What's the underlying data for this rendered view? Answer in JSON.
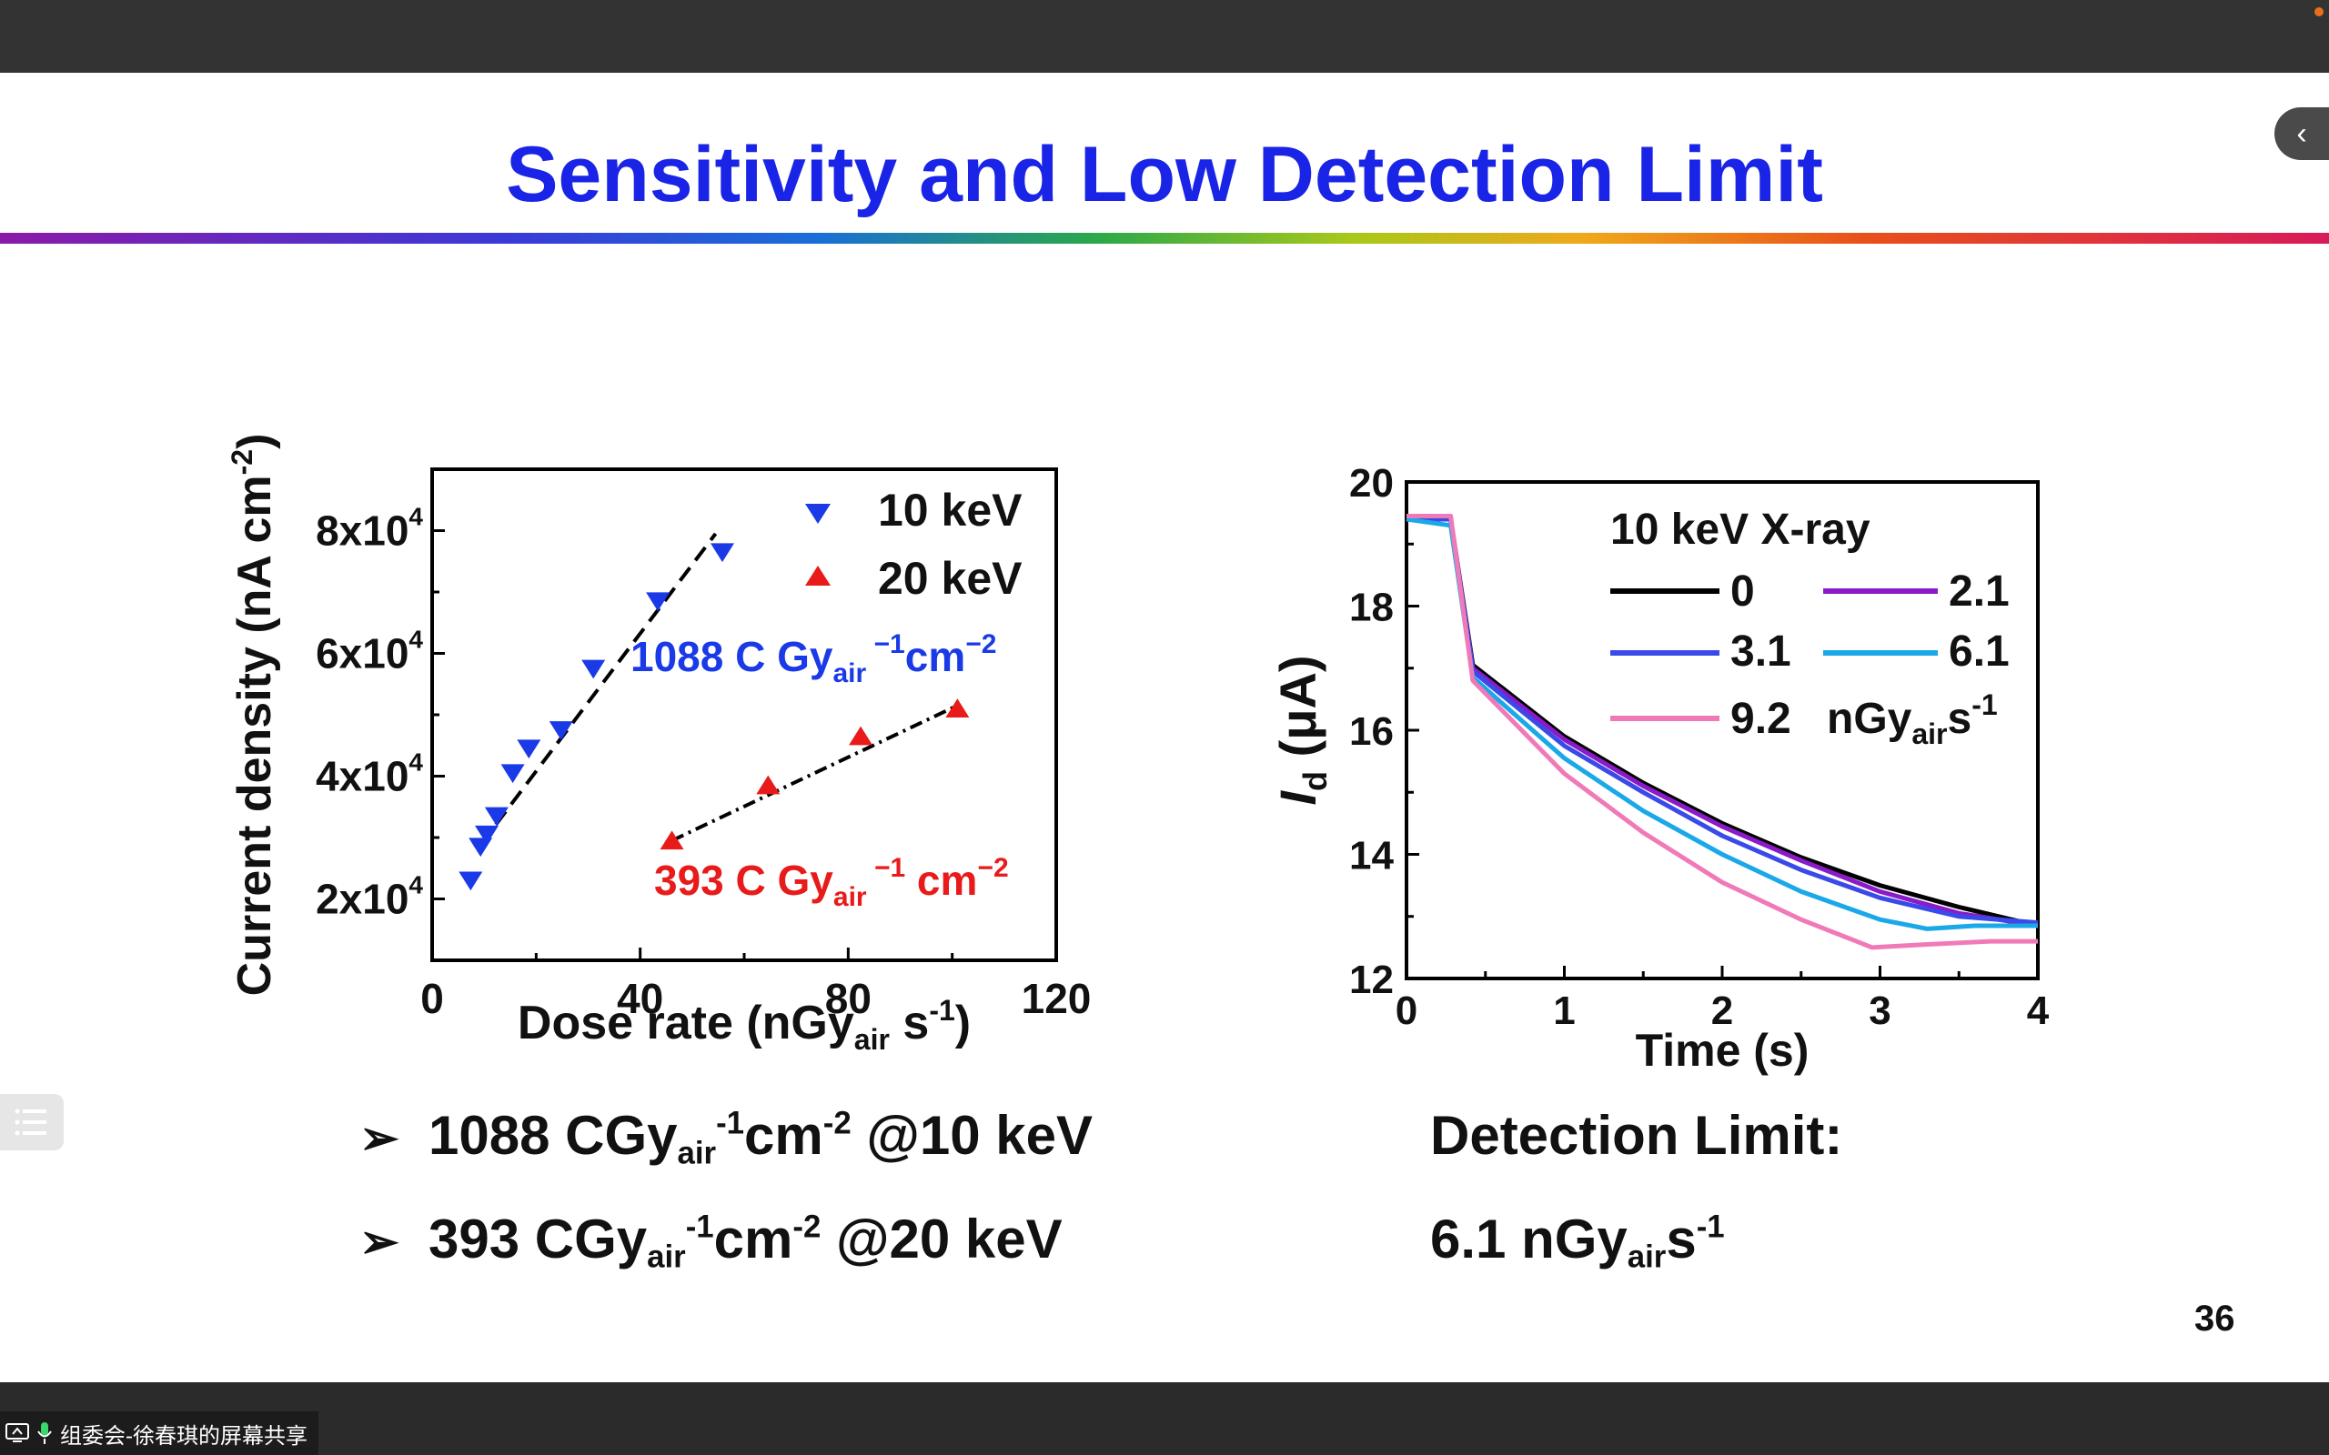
{
  "slide": {
    "title": "Sensitivity and Low Detection Limit",
    "page_number": "36",
    "bullets": [
      {
        "value": "1088",
        "unit": "CGy",
        "sub": "air",
        "exp1": "-1",
        "mid": "cm",
        "exp2": "-2",
        "tail": "@10 keV"
      },
      {
        "value": "393",
        "unit": "CGy",
        "sub": "air",
        "exp1": "-1",
        "mid": "cm",
        "exp2": "-2",
        "tail": "@20 keV"
      }
    ],
    "detection_limit": {
      "label": "Detection Limit:",
      "value": "6.1 nGy",
      "sub": "air",
      "mid": "s",
      "exp": "-1"
    }
  },
  "screen_share": {
    "label": "组委会-徐春琪的屏幕共享"
  },
  "colors": {
    "title": "#1a24e6",
    "blue_series": "#1a3ae8",
    "red_series": "#e81a1a"
  },
  "chart_data": [
    {
      "type": "scatter",
      "xlabel": "Dose rate (nGyair s-1)",
      "ylabel": "Current density (nA cm-2)",
      "xlim": [
        0,
        120
      ],
      "ylim": [
        10000,
        90000
      ],
      "xticks": [
        "0",
        "40",
        "80",
        "120"
      ],
      "yticks": [
        "2x104",
        "4x104",
        "6x104",
        "8x104"
      ],
      "series": [
        {
          "name": "10 keV",
          "color": "#1a3ae8",
          "marker": "triangle-down",
          "x": [
            7.4,
            9.3,
            10.5,
            12.4,
            15.5,
            18.6,
            24.8,
            31.0,
            43.4,
            55.8
          ],
          "y": [
            23000,
            28500,
            30500,
            33500,
            40500,
            44500,
            47500,
            57500,
            68500,
            76500
          ],
          "fit": [
            [
              9.3,
              28800
            ],
            [
              54.5,
              79500
            ]
          ],
          "fit_style": "dashed",
          "annotation": "1088 C Gyair−1cm−2"
        },
        {
          "name": "20 keV",
          "color": "#e81a1a",
          "marker": "triangle-up",
          "x": [
            46.1,
            64.6,
            82.4,
            101.0
          ],
          "y": [
            29500,
            38500,
            46500,
            51000
          ],
          "fit": [
            [
              46.1,
              29500
            ],
            [
              101.0,
              51500
            ]
          ],
          "fit_style": "dashdot",
          "annotation": "393 C Gyair−1 cm−2"
        }
      ],
      "legend_position": "top-right"
    },
    {
      "type": "line",
      "xlabel": "Time (s)",
      "ylabel": "Id (μA)",
      "xlim": [
        0,
        4
      ],
      "ylim": [
        12,
        20
      ],
      "xticks": [
        "0",
        "1",
        "2",
        "3",
        "4"
      ],
      "yticks": [
        "12",
        "14",
        "16",
        "18",
        "20"
      ],
      "legend_title": "10 keV  X-ray",
      "legend_unit": "nGyairs-1",
      "series": [
        {
          "name": "0",
          "color": "#000000",
          "x": [
            0,
            0.28,
            0.42,
            1.0,
            1.5,
            2.0,
            2.5,
            3.0,
            3.5,
            4.0
          ],
          "y": [
            19.4,
            19.4,
            17.05,
            15.9,
            15.15,
            14.5,
            13.95,
            13.5,
            13.15,
            12.85
          ]
        },
        {
          "name": "2.1",
          "color": "#8b1ac8",
          "x": [
            0,
            0.28,
            0.42,
            1.0,
            1.5,
            2.0,
            2.5,
            3.0,
            3.5,
            4.0
          ],
          "y": [
            19.4,
            19.4,
            17.0,
            15.85,
            15.1,
            14.45,
            13.9,
            13.4,
            13.05,
            12.85
          ]
        },
        {
          "name": "3.1",
          "color": "#3a4ae8",
          "x": [
            0,
            0.28,
            0.42,
            1.0,
            1.5,
            2.0,
            2.5,
            3.0,
            3.5,
            4.0
          ],
          "y": [
            19.4,
            19.4,
            16.95,
            15.75,
            15.0,
            14.3,
            13.75,
            13.3,
            13.0,
            12.9
          ]
        },
        {
          "name": "6.1",
          "color": "#1aa8e8",
          "x": [
            0,
            0.28,
            0.42,
            1.0,
            1.5,
            2.0,
            2.5,
            3.0,
            3.3,
            3.6,
            4.0
          ],
          "y": [
            19.4,
            19.3,
            16.85,
            15.55,
            14.7,
            14.0,
            13.4,
            12.95,
            12.8,
            12.85,
            12.85
          ]
        },
        {
          "name": "9.2",
          "color": "#f07ab8",
          "x": [
            0,
            0.28,
            0.42,
            1.0,
            1.5,
            2.0,
            2.5,
            2.95,
            3.3,
            3.7,
            4.0
          ],
          "y": [
            19.45,
            19.45,
            16.8,
            15.3,
            14.35,
            13.55,
            12.95,
            12.5,
            12.55,
            12.6,
            12.6
          ]
        }
      ]
    }
  ]
}
